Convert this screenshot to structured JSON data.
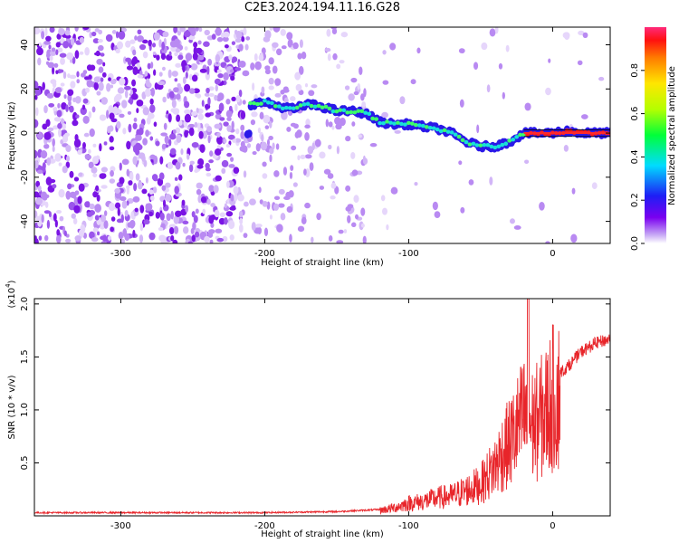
{
  "title": "C2E3.2024.194.11.16.G28",
  "colorbar": {
    "label": "Normalized spectral amplitude",
    "ticks": [
      "0.0",
      "0.2",
      "0.4",
      "0.6",
      "0.8"
    ]
  },
  "chart_data": [
    {
      "type": "heatmap",
      "name": "spectrogram",
      "xlabel": "Height of straight line (km)",
      "ylabel": "Frequency (Hz)",
      "xlim": [
        -360,
        40
      ],
      "ylim": [
        -50,
        48
      ],
      "xticks": [
        "-300",
        "-200",
        "-100",
        "0"
      ],
      "yticks": [
        "-40",
        "-20",
        "0",
        "20",
        "40"
      ],
      "ridge": {
        "x": [
          -210,
          -200,
          -190,
          -180,
          -170,
          -160,
          -150,
          -140,
          -130,
          -120,
          -110,
          -100,
          -90,
          -80,
          -70,
          -60,
          -50,
          -40,
          -30,
          -20,
          -10,
          0,
          10,
          20,
          30,
          40
        ],
        "y": [
          13,
          14,
          12,
          11,
          13,
          12,
          10,
          10,
          9,
          5,
          4,
          4,
          3,
          2,
          0,
          -4,
          -6,
          -6,
          -4,
          0,
          0,
          0,
          1,
          0,
          0,
          0
        ]
      },
      "colorscale": "rainbow",
      "grid": false
    },
    {
      "type": "line",
      "name": "snr",
      "xlabel": "Height of straight line (km)",
      "ylabel": "SNR (10 * v/v)",
      "yscale_label": "(x10",
      "yscale_exp": "4",
      "xlim": [
        -360,
        40
      ],
      "ylim": [
        0,
        2.05
      ],
      "xticks": [
        "-300",
        "-200",
        "-100",
        "0"
      ],
      "yticks": [
        "0.5",
        "1.0",
        "1.5",
        "2.0"
      ],
      "series": [
        {
          "color": "#e8252a",
          "x": [
            -360,
            -300,
            -200,
            -150,
            -120,
            -110,
            -100,
            -90,
            -80,
            -70,
            -60,
            -50,
            -45,
            -40,
            -35,
            -30,
            -25,
            -20,
            -15,
            -10,
            -5,
            0,
            10,
            20,
            30,
            40
          ],
          "y": [
            0.03,
            0.03,
            0.03,
            0.04,
            0.06,
            0.09,
            0.14,
            0.16,
            0.2,
            0.22,
            0.28,
            0.35,
            0.45,
            0.55,
            0.7,
            0.8,
            0.95,
            1.1,
            1.0,
            1.05,
            1.15,
            1.3,
            1.4,
            1.55,
            1.63,
            1.67
          ]
        }
      ],
      "grid": false
    }
  ]
}
